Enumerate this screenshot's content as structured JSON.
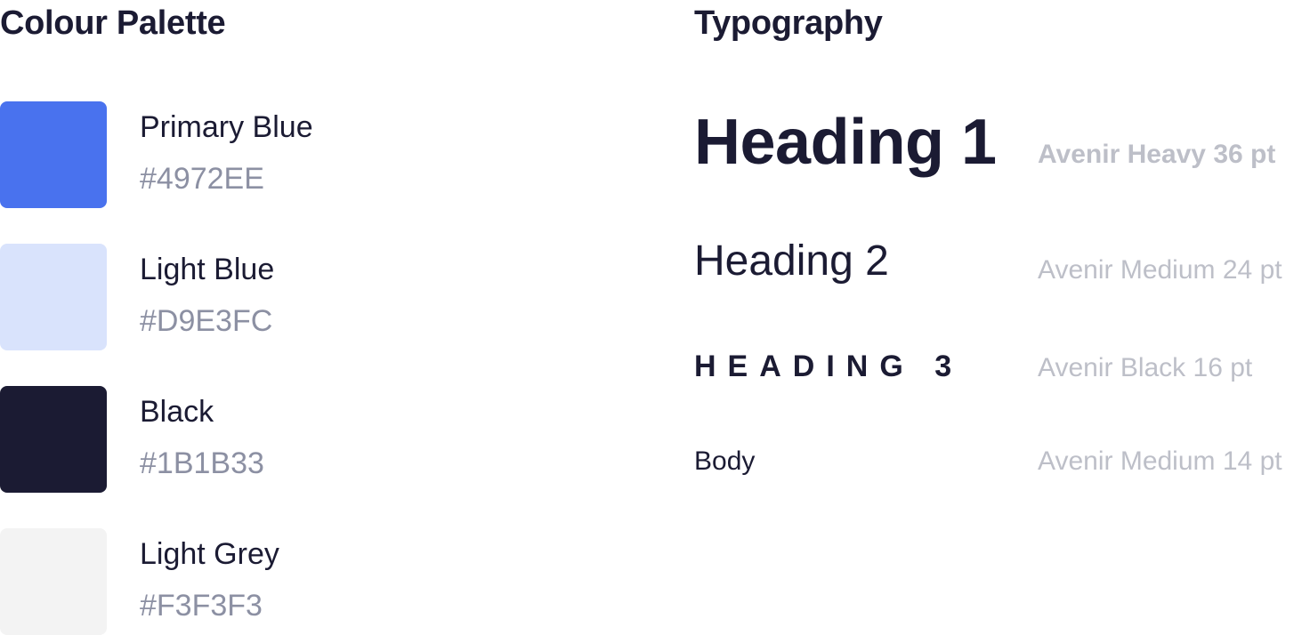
{
  "palette": {
    "title": "Colour Palette",
    "colors": [
      {
        "name": "Primary Blue",
        "hex": "#4972EE"
      },
      {
        "name": "Light Blue",
        "hex": "#D9E3FC"
      },
      {
        "name": "Black",
        "hex": "#1B1B33"
      },
      {
        "name": "Light Grey",
        "hex": "#F3F3F3"
      }
    ]
  },
  "typography": {
    "title": "Typography",
    "styles": [
      {
        "sample": "Heading 1",
        "spec": "Avenir Heavy 36 pt"
      },
      {
        "sample": "Heading 2",
        "spec": "Avenir Medium 24 pt"
      },
      {
        "sample": "HEADING 3",
        "spec": "Avenir Black 16 pt"
      },
      {
        "sample": "Body",
        "spec": "Avenir Medium 14 pt"
      }
    ]
  },
  "colors": {
    "text_primary": "#1B1B33",
    "text_hex": "#8C90A3",
    "text_spec": "#BDBFC8"
  }
}
